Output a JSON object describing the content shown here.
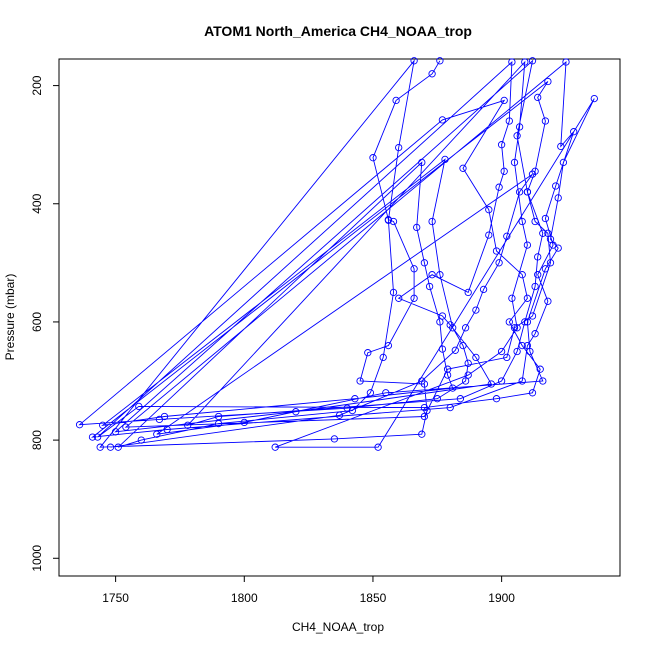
{
  "chart_data": {
    "type": "line",
    "title": "ATOM1 North_America CH4_NOAA_trop",
    "xlabel": "CH4_NOAA_trop",
    "ylabel": "Pressure (mbar)",
    "xlim": [
      1728,
      1946
    ],
    "ylim": [
      1030,
      155
    ],
    "y_inverted": true,
    "grid": false,
    "xticks": [
      1750,
      1800,
      1850,
      1900
    ],
    "yticks": [
      200,
      400,
      600,
      800,
      1000
    ],
    "series": [
      {
        "color": "#0000ff",
        "marker": "open-circle",
        "points": [
          [
            1876,
            158
          ],
          [
            1873,
            180
          ],
          [
            1859,
            225
          ],
          [
            1850,
            322
          ],
          [
            1856,
            427
          ],
          [
            1858,
            430
          ],
          [
            1866,
            510
          ],
          [
            1866,
            560
          ],
          [
            1856,
            640
          ],
          [
            1848,
            652
          ],
          [
            1845,
            700
          ],
          [
            1870,
            705
          ],
          [
            1871,
            750
          ],
          [
            1869,
            790
          ],
          [
            1835,
            798
          ],
          [
            1744,
            812
          ],
          [
            1866,
            158
          ],
          [
            1860,
            305
          ],
          [
            1856,
            428
          ],
          [
            1858,
            550
          ],
          [
            1854,
            660
          ],
          [
            1849,
            720
          ],
          [
            1842,
            750
          ],
          [
            1790,
            772
          ],
          [
            1760,
            800
          ],
          [
            1751,
            812
          ],
          [
            1869,
            330
          ],
          [
            1867,
            440
          ],
          [
            1870,
            500
          ],
          [
            1872,
            540
          ],
          [
            1876,
            600
          ],
          [
            1877,
            646
          ],
          [
            1879,
            690
          ],
          [
            1881,
            712
          ],
          [
            1843,
            730
          ],
          [
            1769,
            760
          ],
          [
            1745,
            775
          ],
          [
            1878,
            325
          ],
          [
            1873,
            430
          ],
          [
            1876,
            520
          ],
          [
            1881,
            610
          ],
          [
            1885,
            640
          ],
          [
            1887,
            670
          ],
          [
            1886,
            700
          ],
          [
            1875,
            730
          ],
          [
            1840,
            746
          ],
          [
            1767,
            765
          ],
          [
            1736,
            774
          ],
          [
            1877,
            258
          ],
          [
            1901,
            225
          ],
          [
            1885,
            340
          ],
          [
            1895,
            410
          ],
          [
            1898,
            480
          ],
          [
            1908,
            520
          ],
          [
            1910,
            560
          ],
          [
            1903,
            600
          ],
          [
            1908,
            640
          ],
          [
            1915,
            680
          ],
          [
            1912,
            720
          ],
          [
            1898,
            730
          ],
          [
            1870,
            745
          ],
          [
            1759,
            743
          ],
          [
            1743,
            795
          ],
          [
            1904,
            160
          ],
          [
            1903,
            260
          ],
          [
            1900,
            300
          ],
          [
            1901,
            345
          ],
          [
            1899,
            372
          ],
          [
            1895,
            453
          ],
          [
            1887,
            550
          ],
          [
            1873,
            520
          ],
          [
            1860,
            560
          ],
          [
            1877,
            590
          ],
          [
            1880,
            605
          ],
          [
            1890,
            660
          ],
          [
            1896,
            705
          ],
          [
            1820,
            752
          ],
          [
            1750,
            786
          ],
          [
            1912,
            158
          ],
          [
            1906,
            285
          ],
          [
            1910,
            380
          ],
          [
            1913,
            430
          ],
          [
            1918,
            450
          ],
          [
            1919,
            500
          ],
          [
            1912,
            590
          ],
          [
            1905,
            610
          ],
          [
            1902,
            660
          ],
          [
            1879,
            680
          ],
          [
            1870,
            760
          ],
          [
            1754,
            778
          ],
          [
            1925,
            160
          ],
          [
            1923,
            303
          ],
          [
            1928,
            278
          ],
          [
            1921,
            370
          ],
          [
            1917,
            425
          ],
          [
            1920,
            470
          ],
          [
            1914,
            520
          ],
          [
            1918,
            565
          ],
          [
            1913,
            620
          ],
          [
            1910,
            640
          ],
          [
            1908,
            700
          ],
          [
            1880,
            745
          ],
          [
            1770,
            782
          ],
          [
            1741,
            795
          ],
          [
            1918,
            193
          ],
          [
            1914,
            220
          ],
          [
            1917,
            260
          ],
          [
            1913,
            345
          ],
          [
            1910,
            380
          ],
          [
            1916,
            450
          ],
          [
            1914,
            490
          ],
          [
            1913,
            540
          ],
          [
            1909,
            600
          ],
          [
            1906,
            650
          ],
          [
            1900,
            700
          ],
          [
            1884,
            730
          ],
          [
            1790,
            760
          ],
          [
            1778,
            775
          ],
          [
            1909,
            160
          ],
          [
            1907,
            270
          ],
          [
            1905,
            330
          ],
          [
            1908,
            430
          ],
          [
            1910,
            470
          ],
          [
            1904,
            560
          ],
          [
            1906,
            610
          ],
          [
            1900,
            650
          ],
          [
            1887,
            690
          ],
          [
            1812,
            812
          ],
          [
            1852,
            812
          ],
          [
            1936,
            222
          ],
          [
            1924,
            330
          ],
          [
            1922,
            390
          ],
          [
            1919,
            460
          ],
          [
            1922,
            475
          ],
          [
            1917,
            510
          ],
          [
            1910,
            600
          ],
          [
            1911,
            650
          ],
          [
            1916,
            700
          ],
          [
            1855,
            720
          ],
          [
            1800,
            770
          ],
          [
            1766,
            790
          ],
          [
            1912,
            350
          ],
          [
            1907,
            380
          ],
          [
            1902,
            455
          ],
          [
            1899,
            500
          ],
          [
            1893,
            545
          ],
          [
            1890,
            580
          ],
          [
            1886,
            610
          ],
          [
            1882,
            648
          ],
          [
            1869,
            700
          ],
          [
            1837,
            758
          ],
          [
            1748,
            812
          ]
        ]
      }
    ]
  }
}
